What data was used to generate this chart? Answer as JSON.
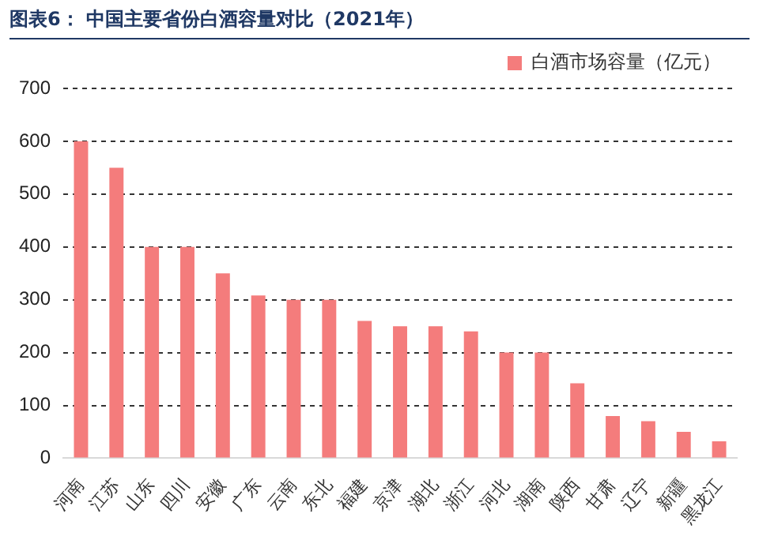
{
  "chart_data": {
    "type": "bar",
    "title": "图表6： 中国主要省份白酒容量对比（2021年）",
    "categories": [
      "河南",
      "江苏",
      "山东",
      "四川",
      "安徽",
      "广东",
      "云南",
      "东北",
      "福建",
      "京津",
      "湖北",
      "浙江",
      "河北",
      "湖南",
      "陕西",
      "甘肃",
      "辽宁",
      "新疆",
      "黑龙江"
    ],
    "series": [
      {
        "name": "白酒市场容量（亿元）",
        "color": "#f47c7c",
        "values": [
          600,
          550,
          400,
          400,
          350,
          308,
          300,
          300,
          260,
          250,
          250,
          240,
          200,
          200,
          142,
          80,
          70,
          50,
          32
        ]
      }
    ],
    "ylim": [
      0,
      700
    ],
    "yticks": [
      0,
      100,
      200,
      300,
      400,
      500,
      600,
      700
    ],
    "grid": "y",
    "legend": "top right"
  }
}
